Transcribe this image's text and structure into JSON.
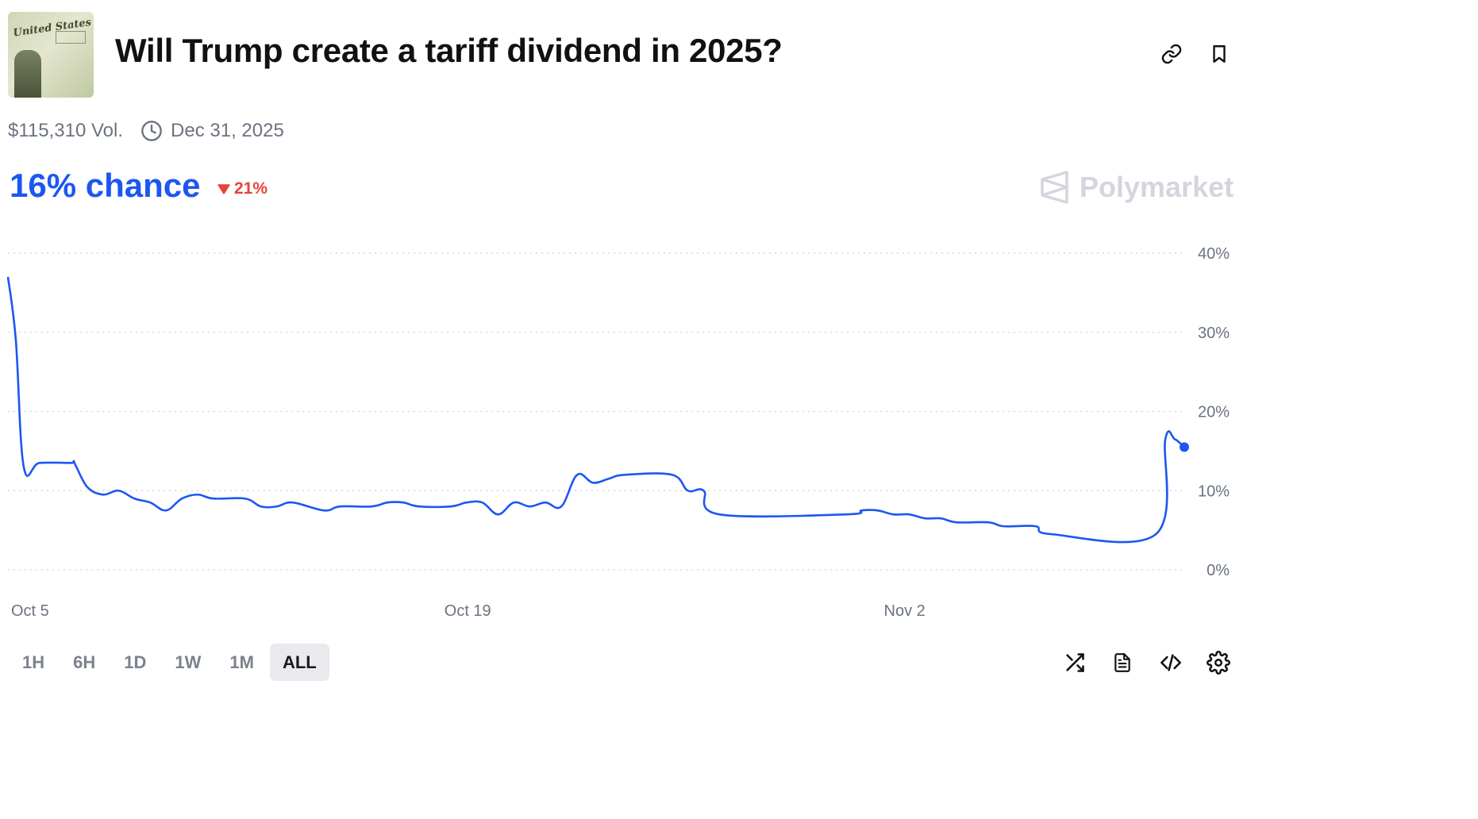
{
  "header": {
    "title": "Will Trump create a tariff dividend in 2025?",
    "thumbnail_text": "United States Treasury"
  },
  "meta": {
    "volume": "$115,310 Vol.",
    "end_date": "Dec 31, 2025"
  },
  "odds": {
    "chance_text": "16% chance",
    "change_text": "21%",
    "change_direction": "down"
  },
  "brand": {
    "name": "Polymarket"
  },
  "colors": {
    "accent": "#1d56f2",
    "negative": "#e5433a",
    "muted": "#6b7380"
  },
  "chart_data": {
    "type": "line",
    "x_ticks": [
      "Oct 5",
      "Oct 19",
      "Nov 2"
    ],
    "y_ticks": [
      "40%",
      "30%",
      "20%",
      "10%",
      "0%"
    ],
    "ylim": [
      0,
      40
    ],
    "xrange_days": [
      0,
      37.2
    ],
    "grid": true,
    "series": [
      {
        "color": "#1d56f2",
        "points": [
          [
            0,
            37
          ],
          [
            0.25,
            29
          ],
          [
            0.5,
            13
          ],
          [
            1,
            13.5
          ],
          [
            2,
            13.5
          ],
          [
            2.1,
            13.5
          ],
          [
            2.5,
            10.5
          ],
          [
            3,
            9.5
          ],
          [
            3.5,
            10
          ],
          [
            4,
            9
          ],
          [
            4.5,
            8.5
          ],
          [
            5,
            7.5
          ],
          [
            5.5,
            9
          ],
          [
            6,
            9.5
          ],
          [
            6.5,
            9
          ],
          [
            7.5,
            9
          ],
          [
            8,
            8
          ],
          [
            8.5,
            8
          ],
          [
            9,
            8.5
          ],
          [
            10,
            7.5
          ],
          [
            10.5,
            8
          ],
          [
            11.5,
            8
          ],
          [
            12,
            8.5
          ],
          [
            12.5,
            8.5
          ],
          [
            13,
            8
          ],
          [
            14,
            8
          ],
          [
            14.5,
            8.5
          ],
          [
            15,
            8.5
          ],
          [
            15.5,
            7
          ],
          [
            16,
            8.5
          ],
          [
            16.5,
            8
          ],
          [
            17,
            8.5
          ],
          [
            17.5,
            8
          ],
          [
            18,
            12
          ],
          [
            18.5,
            11
          ],
          [
            19,
            11.5
          ],
          [
            19.5,
            12
          ],
          [
            21,
            12
          ],
          [
            21.5,
            10
          ],
          [
            22,
            10
          ],
          [
            22.5,
            7
          ],
          [
            26.5,
            7
          ],
          [
            27,
            7.5
          ],
          [
            27.5,
            7.5
          ],
          [
            28,
            7
          ],
          [
            28.5,
            7
          ],
          [
            29,
            6.5
          ],
          [
            29.5,
            6.5
          ],
          [
            30,
            6
          ],
          [
            31,
            6
          ],
          [
            31.5,
            5.5
          ],
          [
            32.5,
            5.5
          ],
          [
            33,
            4.5
          ],
          [
            36.3,
            4.5
          ],
          [
            36.6,
            16.5
          ],
          [
            36.9,
            16.5
          ],
          [
            37.2,
            15.5
          ]
        ]
      }
    ],
    "x_tick_positions_days": [
      0,
      13.8,
      27.7
    ]
  },
  "time_ranges": [
    "1H",
    "6H",
    "1D",
    "1W",
    "1M",
    "ALL"
  ],
  "active_range": "ALL",
  "toolbar": {
    "shuffle_icon": "shuffle-icon",
    "document_icon": "document-icon",
    "embed_icon": "code-icon",
    "settings_icon": "gear-icon"
  }
}
